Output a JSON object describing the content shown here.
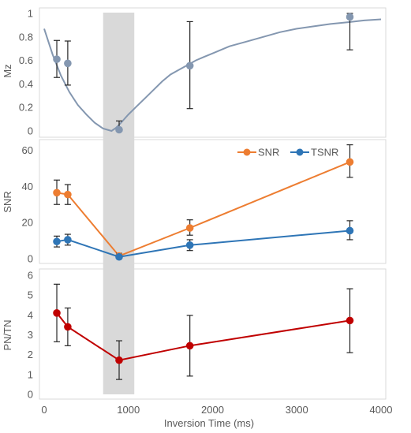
{
  "chart_data": [
    {
      "type": "scatter",
      "ylabel": "Mz",
      "ylim": [
        0,
        1
      ],
      "yticks": [
        "0",
        "0.2",
        "0.4",
        "0.6",
        "0.8",
        "1"
      ],
      "xlim": [
        0,
        4000
      ],
      "grid": false,
      "shaded_region": [
        700,
        1070
      ],
      "series": [
        {
          "x": [
            150,
            280,
            890,
            1730,
            3630
          ],
          "y": [
            0.61,
            0.575,
            0.01,
            0.555,
            0.97
          ],
          "err_low": [
            0.455,
            0.39,
            0.0,
            0.19,
            0.69
          ],
          "err_high": [
            0.77,
            0.765,
            0.085,
            0.93,
            1.0
          ],
          "color": "#8497b0"
        }
      ],
      "curve": {
        "x": [
          0,
          100,
          200,
          300,
          400,
          500,
          600,
          700,
          750,
          800,
          850,
          900,
          950,
          1000,
          1100,
          1200,
          1300,
          1400,
          1500,
          1600,
          1700,
          1800,
          1900,
          2000,
          2200,
          2400,
          2600,
          2800,
          3000,
          3200,
          3400,
          3600,
          3800,
          4000
        ],
        "y": [
          0.87,
          0.65,
          0.47,
          0.33,
          0.22,
          0.14,
          0.07,
          0.02,
          0.01,
          0.0,
          0.025,
          0.06,
          0.1,
          0.14,
          0.21,
          0.28,
          0.35,
          0.42,
          0.48,
          0.52,
          0.56,
          0.6,
          0.63,
          0.66,
          0.72,
          0.76,
          0.8,
          0.84,
          0.87,
          0.89,
          0.91,
          0.925,
          0.94,
          0.95
        ],
        "color": "#8497b0"
      }
    },
    {
      "type": "line",
      "ylabel": "SNR",
      "ylim": [
        0,
        65
      ],
      "yticks": [
        "0",
        "20",
        "40",
        "60"
      ],
      "xlim": [
        0,
        4000
      ],
      "grid": false,
      "legend_position": "top-right",
      "series": [
        {
          "name": "SNR",
          "x": [
            150,
            280,
            890,
            1730,
            3630
          ],
          "y": [
            36.5,
            35.5,
            1.5,
            17,
            53.5
          ],
          "err_low": [
            30,
            30,
            0.5,
            13,
            45
          ],
          "err_high": [
            43.5,
            41,
            3,
            21.5,
            63
          ],
          "color": "#ed7d31"
        },
        {
          "name": "TSNR",
          "x": [
            150,
            280,
            890,
            1730,
            3630
          ],
          "y": [
            9.5,
            10.5,
            1,
            7.5,
            15.5
          ],
          "err_low": [
            6.5,
            7.5,
            0.5,
            4.5,
            10.5
          ],
          "err_high": [
            12.5,
            13.5,
            1.5,
            10.5,
            21
          ],
          "color": "#2e75b6"
        }
      ]
    },
    {
      "type": "line",
      "ylabel": "PN/TN",
      "xlabel": "Inversion Time (ms)",
      "ylim": [
        0,
        6
      ],
      "yticks": [
        "0",
        "1",
        "2",
        "3",
        "4",
        "5",
        "6"
      ],
      "xlim": [
        0,
        4000
      ],
      "xticks": [
        "0",
        "1000",
        "2000",
        "3000",
        "4000"
      ],
      "grid": false,
      "series": [
        {
          "x": [
            150,
            280,
            890,
            1730,
            3630
          ],
          "y": [
            4.1,
            3.4,
            1.72,
            2.45,
            3.72
          ],
          "err_low": [
            2.65,
            2.45,
            0.75,
            0.92,
            2.1
          ],
          "err_high": [
            5.55,
            4.35,
            2.7,
            3.98,
            5.32
          ],
          "color": "#c00000"
        }
      ]
    }
  ]
}
